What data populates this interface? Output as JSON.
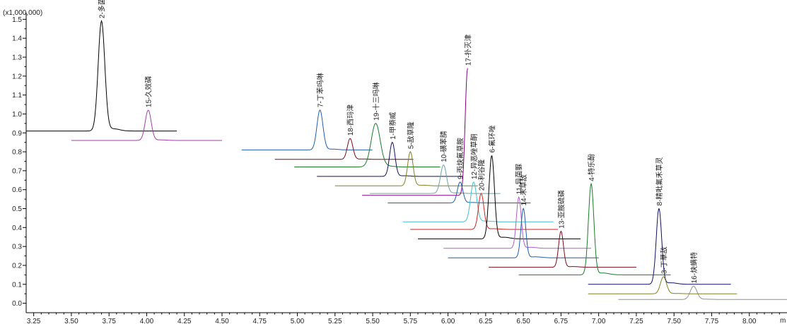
{
  "chart_data": {
    "type": "line",
    "title": "",
    "xlabel": "",
    "ylabel": "",
    "y_multiplier_label": "(x1,000,000)",
    "x_unit_fragment": "m",
    "xlim": [
      3.2,
      8.25
    ],
    "ylim": [
      -0.05,
      1.52
    ],
    "x_ticks": [
      3.25,
      3.5,
      3.75,
      4.0,
      4.25,
      4.5,
      4.75,
      5.0,
      5.25,
      5.5,
      5.75,
      6.0,
      6.25,
      6.5,
      6.75,
      7.0,
      7.25,
      7.5,
      7.75,
      8.0
    ],
    "x_tick_labels": [
      "3.25",
      "3.50",
      "3.75",
      "4.00",
      "4.25",
      "4.50",
      "4.75",
      "5.00",
      "5.25",
      "5.50",
      "5.75",
      "6.00",
      "6.25",
      "6.50",
      "6.75",
      "7.00",
      "7.25",
      "7.50",
      "7.75",
      "8.00"
    ],
    "y_ticks": [
      0.0,
      0.1,
      0.2,
      0.3,
      0.4,
      0.5,
      0.6,
      0.7,
      0.8,
      0.9,
      1.0,
      1.1,
      1.2,
      1.3,
      1.4,
      1.5
    ],
    "y_tick_labels": [
      "0.0",
      "0.1",
      "0.2",
      "0.3",
      "0.4",
      "0.5",
      "0.6",
      "0.7",
      "0.8",
      "0.9",
      "1.0",
      "1.1",
      "1.2",
      "1.3",
      "1.4",
      "1.5"
    ],
    "grid": false,
    "series": [
      {
        "label": "2-多菌灵",
        "color": "#000000",
        "x_start": 3.2,
        "x_end": 4.2,
        "baseline": 0.91,
        "peak_rt": 3.7,
        "peak_height": 1.49,
        "width": 0.022
      },
      {
        "label": "15-久效磷",
        "color": "#a040a0",
        "x_start": 3.5,
        "x_end": 4.5,
        "baseline": 0.86,
        "peak_rt": 4.01,
        "peak_height": 1.02,
        "width": 0.02
      },
      {
        "label": "7-丁苯吗啉",
        "color": "#1f5fa8",
        "x_start": 4.63,
        "x_end": 5.5,
        "baseline": 0.81,
        "peak_rt": 5.15,
        "peak_height": 1.02,
        "width": 0.02
      },
      {
        "label": "18-西玛津",
        "color": "#7a0a1a",
        "x_start": 4.85,
        "x_end": 5.77,
        "baseline": 0.76,
        "peak_rt": 5.35,
        "peak_height": 0.87,
        "width": 0.018
      },
      {
        "label": "19-十三吗啉",
        "color": "#1a7a2a",
        "x_start": 4.98,
        "x_end": 5.95,
        "baseline": 0.72,
        "peak_rt": 5.52,
        "peak_height": 0.95,
        "width": 0.03
      },
      {
        "label": "1-甲萘威",
        "color": "#101060",
        "x_start": 5.13,
        "x_end": 6.1,
        "baseline": 0.67,
        "peak_rt": 5.63,
        "peak_height": 0.85,
        "width": 0.018
      },
      {
        "label": "5-敌草隆",
        "color": "#808020",
        "x_start": 5.25,
        "x_end": 6.2,
        "baseline": 0.62,
        "peak_rt": 5.75,
        "peak_height": 0.8,
        "width": 0.018
      },
      {
        "label": "10-磺苯腈",
        "color": "#70a0a0",
        "x_start": 5.48,
        "x_end": 6.35,
        "baseline": 0.58,
        "peak_rt": 5.97,
        "peak_height": 0.73,
        "width": 0.02
      },
      {
        "label": "17-扑灭津",
        "color": "#800080",
        "x_start": 5.43,
        "x_end": 6.13,
        "baseline": 0.57,
        "peak_rt": 6.13,
        "peak_height": 1.24,
        "width": 0.016
      },
      {
        "label": "9-丙炔氟草胺",
        "color": "#1f5fa8",
        "x_start": 5.6,
        "x_end": 6.55,
        "baseline": 0.53,
        "peak_rt": 6.08,
        "peak_height": 0.64,
        "width": 0.018
      },
      {
        "label": "12-异恶唑草酮",
        "color": "#40c0d0",
        "x_start": 5.7,
        "x_end": 6.7,
        "baseline": 0.43,
        "peak_rt": 6.17,
        "peak_height": 0.64,
        "width": 0.02
      },
      {
        "label": "20-利谷隆",
        "color": "#d02020",
        "x_start": 5.75,
        "x_end": 6.73,
        "baseline": 0.39,
        "peak_rt": 6.22,
        "peak_height": 0.58,
        "width": 0.018
      },
      {
        "label": "6-氟环唑",
        "color": "#000000",
        "x_start": 5.8,
        "x_end": 6.88,
        "baseline": 0.34,
        "peak_rt": 6.29,
        "peak_height": 0.78,
        "width": 0.018
      },
      {
        "label": "11-异菌脲",
        "color": "#b060c0",
        "x_start": 5.97,
        "x_end": 6.95,
        "baseline": 0.29,
        "peak_rt": 6.47,
        "peak_height": 0.56,
        "width": 0.016
      },
      {
        "label": "14-禾草敌",
        "color": "#1f5fa8",
        "x_start": 6.0,
        "x_end": 7.0,
        "baseline": 0.24,
        "peak_rt": 6.5,
        "peak_height": 0.5,
        "width": 0.016
      },
      {
        "label": "13-亚胺硫磷",
        "color": "#7a0a1a",
        "x_start": 6.27,
        "x_end": 7.25,
        "baseline": 0.19,
        "peak_rt": 6.75,
        "peak_height": 0.38,
        "width": 0.016
      },
      {
        "label": "4-特乐酚",
        "color": "#1a7a2a",
        "x_start": 6.47,
        "x_end": 7.48,
        "baseline": 0.15,
        "peak_rt": 6.95,
        "peak_height": 0.63,
        "width": 0.018
      },
      {
        "label": "8-精吡氟禾草灵",
        "color": "#101060",
        "x_start": 6.93,
        "x_end": 7.88,
        "baseline": 0.1,
        "peak_rt": 7.4,
        "peak_height": 0.5,
        "width": 0.018
      },
      {
        "label": "3-丁草敌",
        "color": "#808020",
        "x_start": 6.93,
        "x_end": 7.92,
        "baseline": 0.05,
        "peak_rt": 7.43,
        "peak_height": 0.14,
        "width": 0.02
      },
      {
        "label": "16-炔螨特",
        "color": "#909090",
        "x_start": 7.13,
        "x_end": 8.25,
        "baseline": 0.02,
        "peak_rt": 7.63,
        "peak_height": 0.09,
        "width": 0.022
      }
    ]
  }
}
